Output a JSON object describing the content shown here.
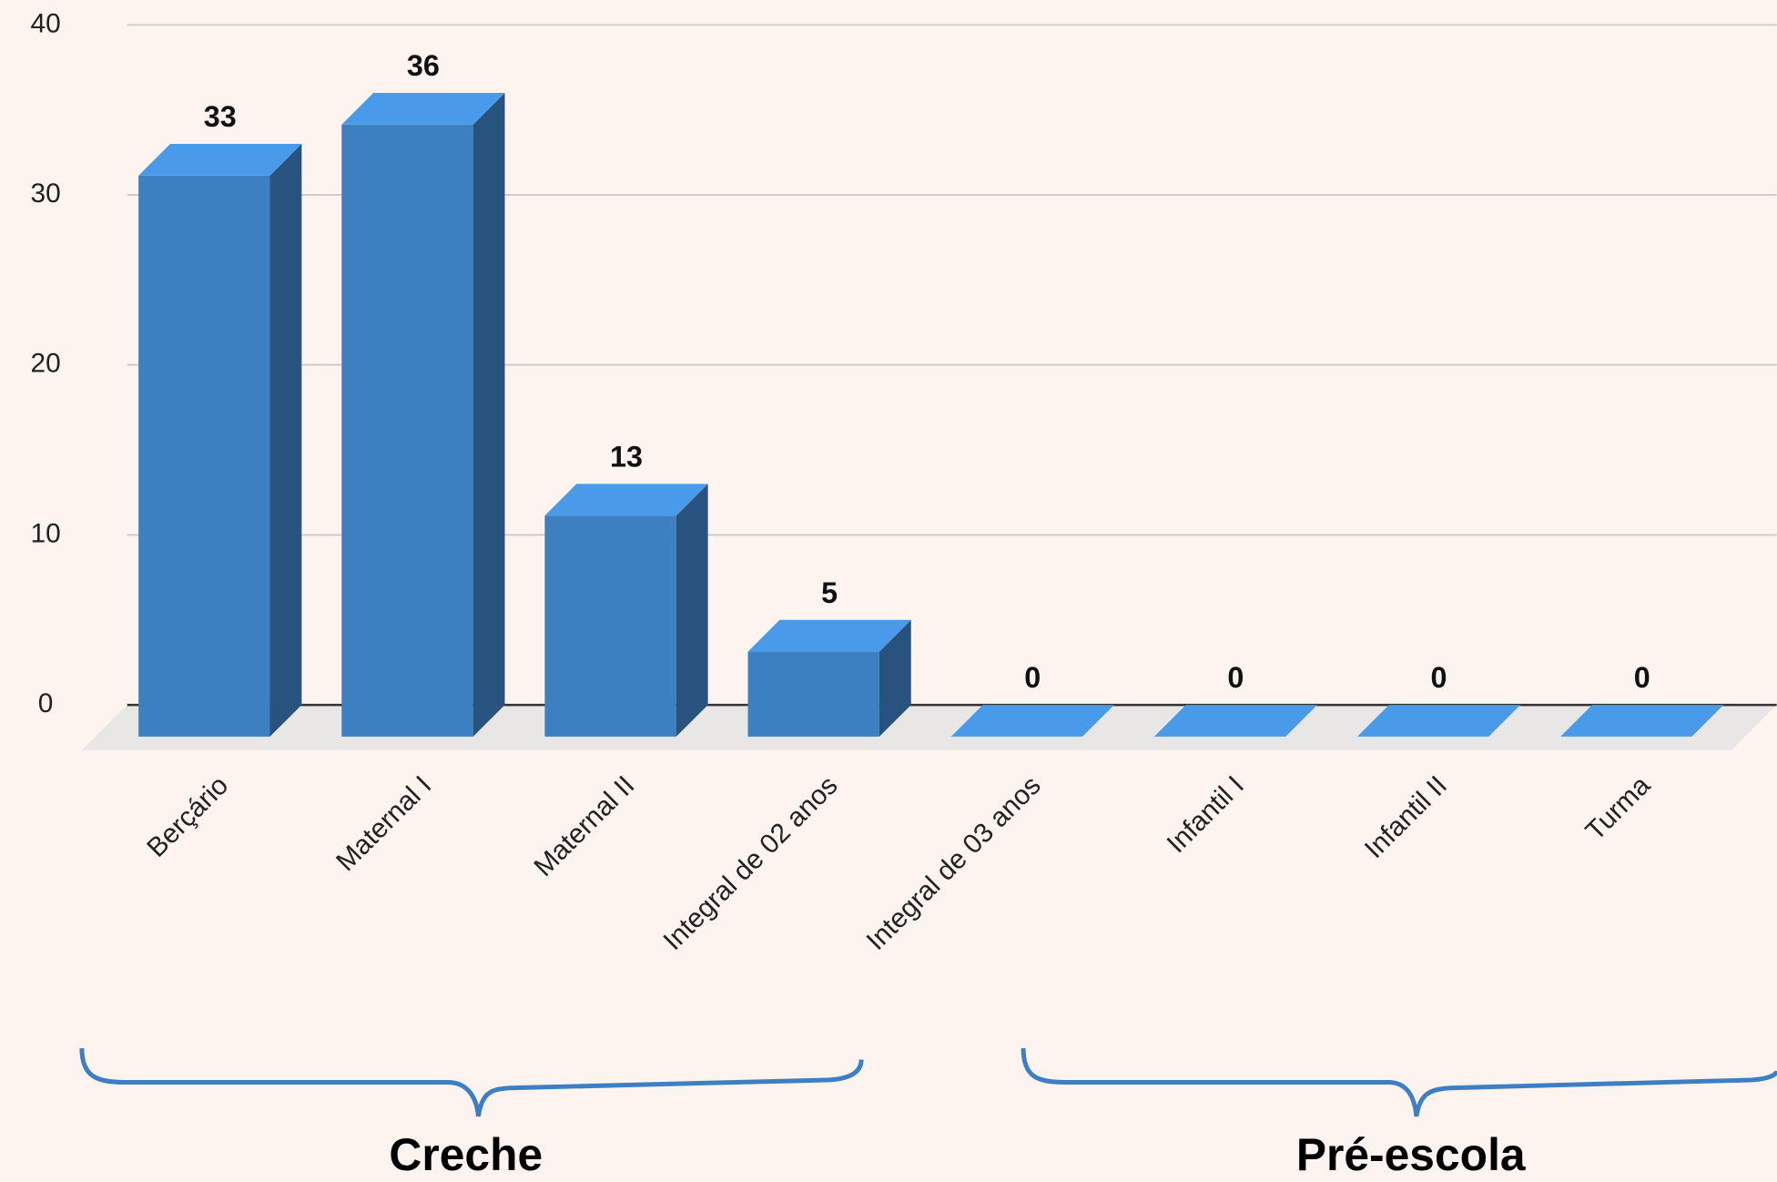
{
  "chart_data": {
    "type": "bar3d",
    "categories": [
      "Berçário",
      "Maternal I",
      "Maternal II",
      "Integral de 02 anos",
      "Integral de 03 anos",
      "Infantil I",
      "Infantil II",
      "Turma"
    ],
    "values": [
      33,
      36,
      13,
      5,
      0,
      0,
      0,
      0
    ],
    "color": "#3d80c2",
    "ylim": [
      0,
      40
    ],
    "yticks": [
      0,
      10,
      20,
      30,
      40
    ],
    "grid": true,
    "groups": [
      {
        "label": "Creche"
      },
      {
        "label": "Pré-escola"
      }
    ]
  }
}
